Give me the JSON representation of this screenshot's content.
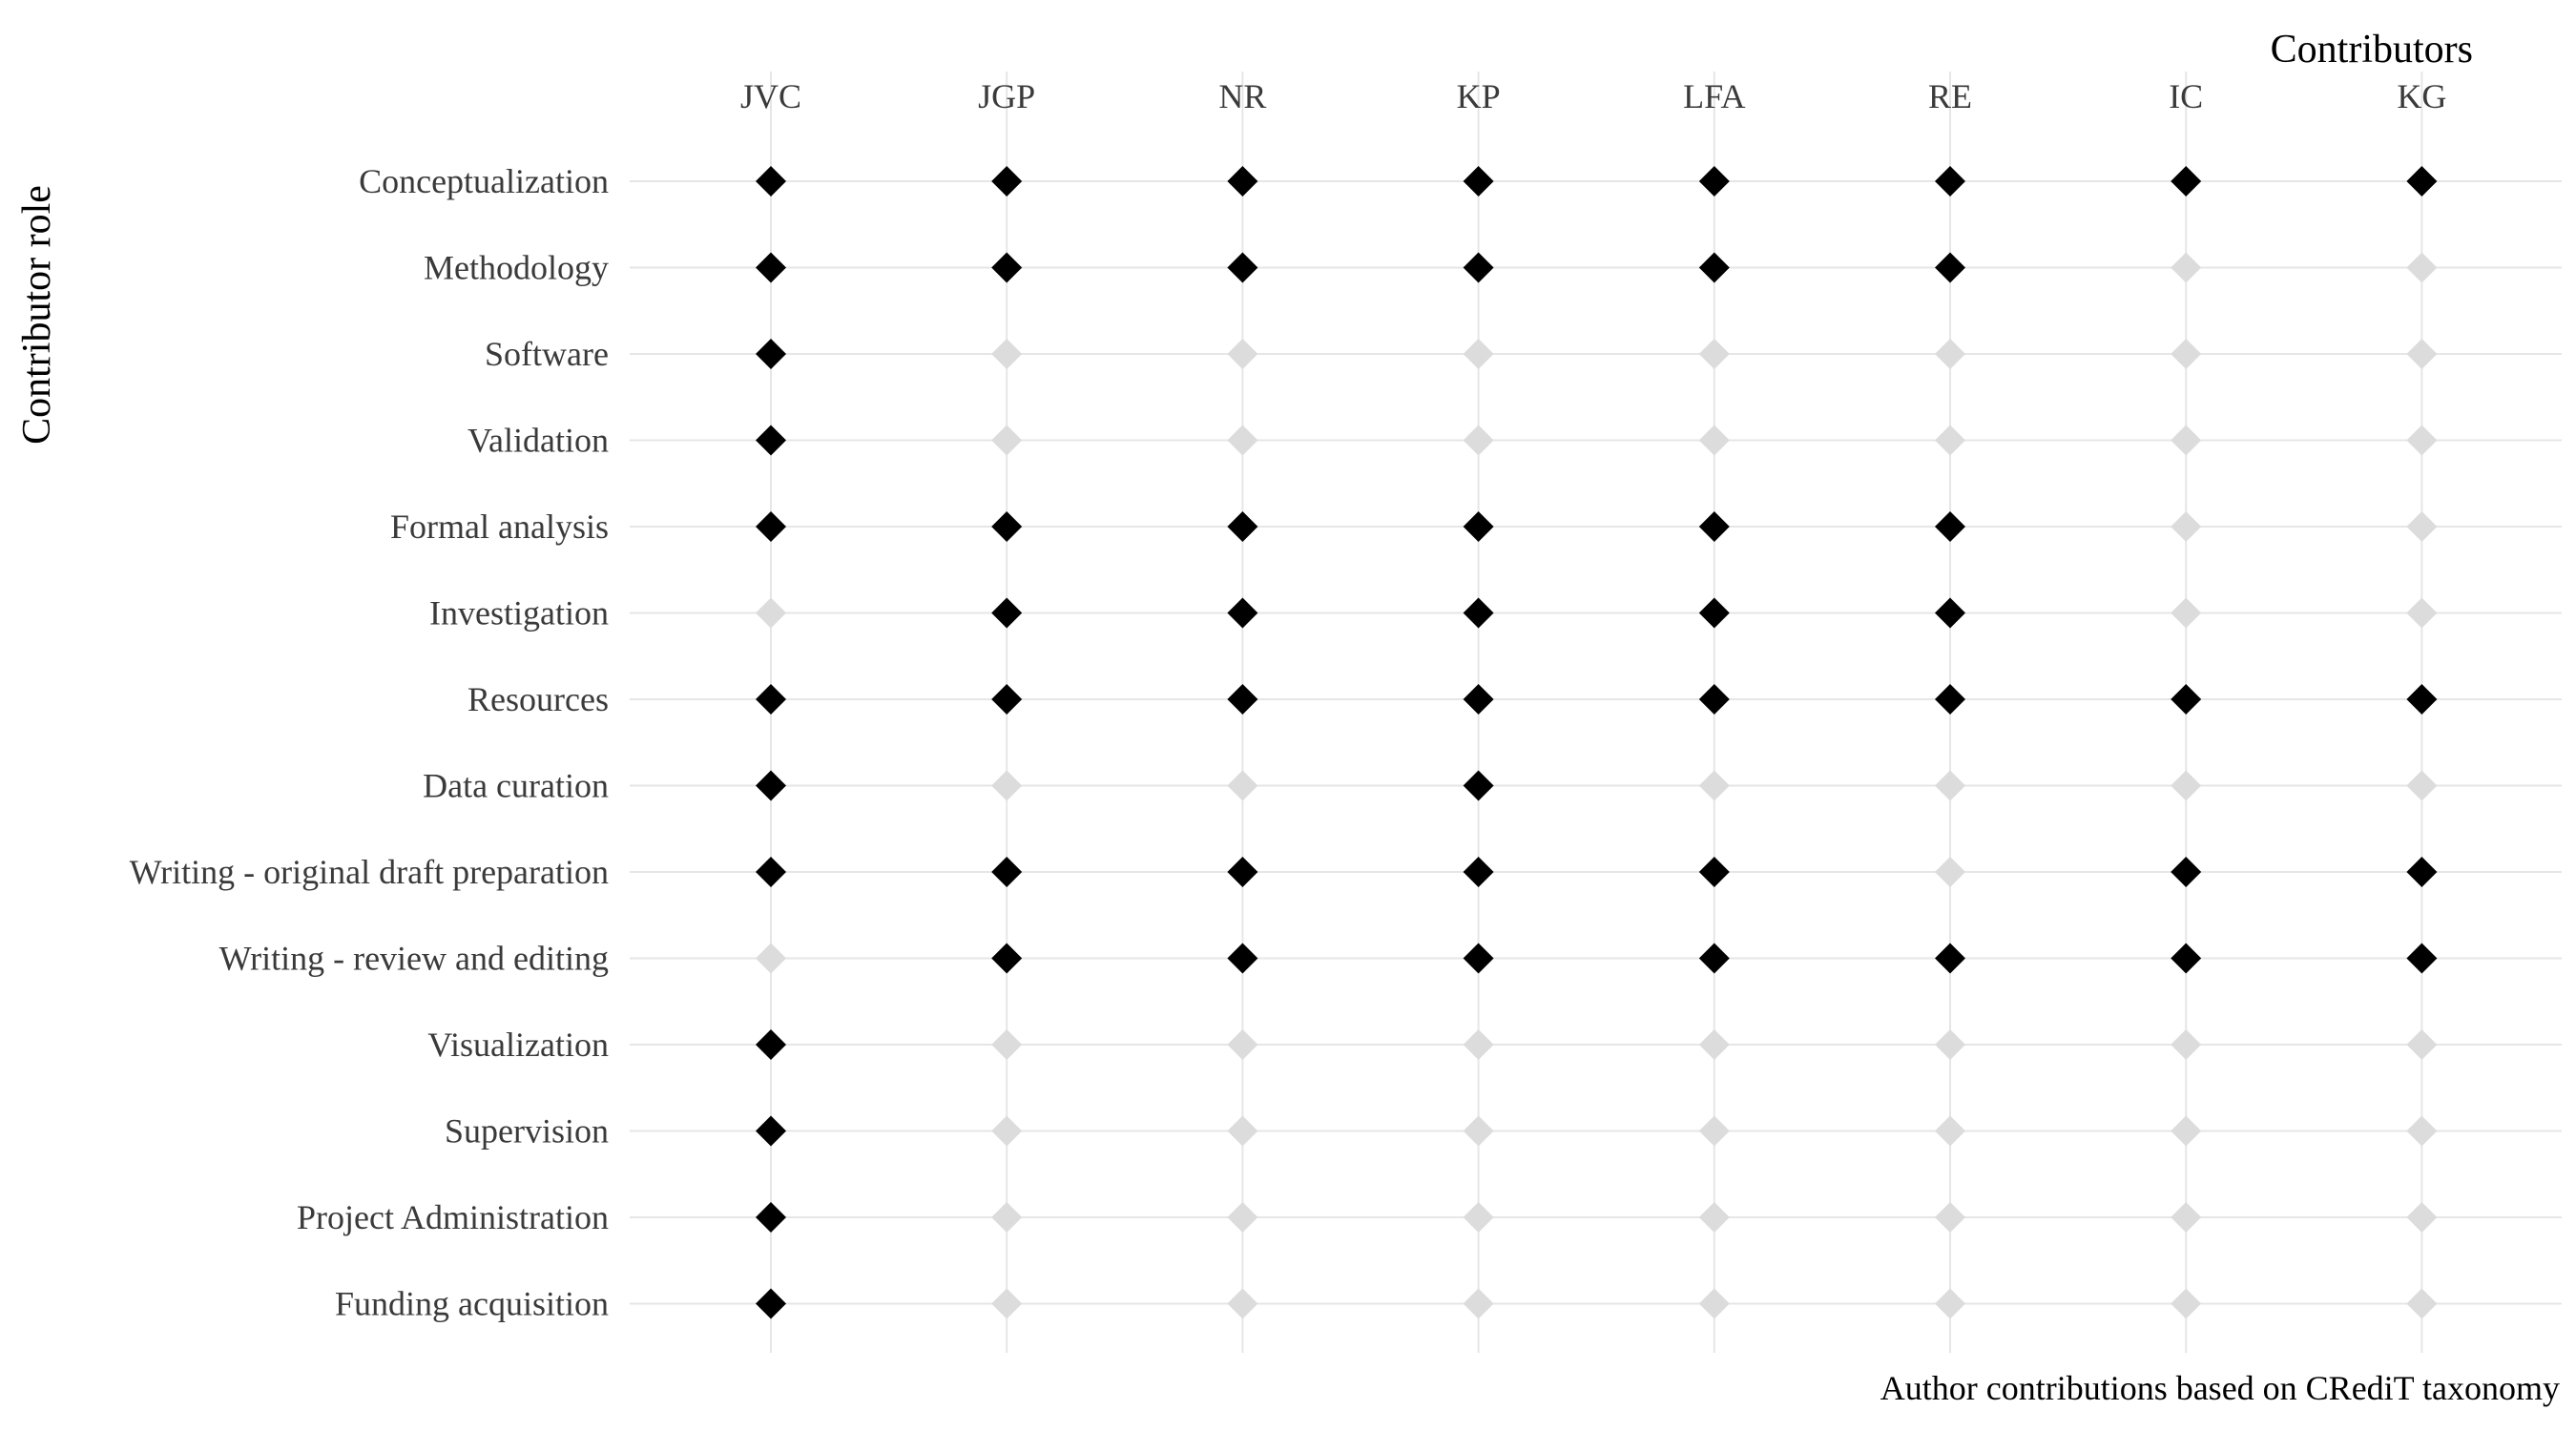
{
  "chart_data": {
    "type": "scatter",
    "marker": "diamond",
    "xlabel": "Contributors",
    "ylabel": "Contributor role",
    "caption": "Author contributions based on CRediT taxonomy",
    "x_axis_position": "top",
    "grid": true,
    "contributors": [
      "JVC",
      "JGP",
      "NR",
      "KP",
      "LFA",
      "RE",
      "IC",
      "KG"
    ],
    "roles": [
      "Conceptualization",
      "Methodology",
      "Software",
      "Validation",
      "Formal analysis",
      "Investigation",
      "Resources",
      "Data curation",
      "Writing - original draft preparation",
      "Writing - review and editing",
      "Visualization",
      "Supervision",
      "Project Administration",
      "Funding acquisition"
    ],
    "matrix": [
      [
        1,
        1,
        1,
        1,
        1,
        1,
        1,
        1
      ],
      [
        1,
        1,
        1,
        1,
        1,
        1,
        0,
        0
      ],
      [
        1,
        0,
        0,
        0,
        0,
        0,
        0,
        0
      ],
      [
        1,
        0,
        0,
        0,
        0,
        0,
        0,
        0
      ],
      [
        1,
        1,
        1,
        1,
        1,
        1,
        0,
        0
      ],
      [
        0,
        1,
        1,
        1,
        1,
        1,
        0,
        0
      ],
      [
        1,
        1,
        1,
        1,
        1,
        1,
        1,
        1
      ],
      [
        1,
        0,
        0,
        1,
        0,
        0,
        0,
        0
      ],
      [
        1,
        1,
        1,
        1,
        1,
        0,
        1,
        1
      ],
      [
        0,
        1,
        1,
        1,
        1,
        1,
        1,
        1
      ],
      [
        1,
        0,
        0,
        0,
        0,
        0,
        0,
        0
      ],
      [
        1,
        0,
        0,
        0,
        0,
        0,
        0,
        0
      ],
      [
        1,
        0,
        0,
        0,
        0,
        0,
        0,
        0
      ],
      [
        1,
        0,
        0,
        0,
        0,
        0,
        0,
        0
      ]
    ],
    "colors": {
      "contributed": "#000000",
      "not_contributed": "#dcdcdc",
      "grid": "#e6e6e6"
    }
  }
}
